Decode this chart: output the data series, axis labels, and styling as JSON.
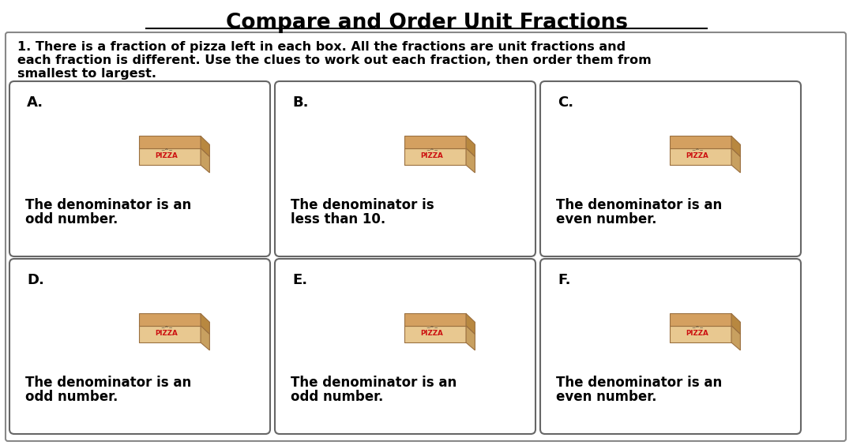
{
  "title": "Compare and Order Unit Fractions",
  "bg_color": "#ffffff",
  "instruction_lines": [
    "1. There is a fraction of pizza left in each box. All the fractions are unit fractions and",
    "each fraction is different. Use the clues to work out each fraction, then order them from",
    "smallest to largest."
  ],
  "cards": [
    {
      "label": "A.",
      "clue_lines": [
        "The denominator is an",
        "odd number."
      ]
    },
    {
      "label": "B.",
      "clue_lines": [
        "The denominator is",
        "less than 10."
      ]
    },
    {
      "label": "C.",
      "clue_lines": [
        "The denominator is an",
        "even number."
      ]
    },
    {
      "label": "D.",
      "clue_lines": [
        "The denominator is an",
        "odd number."
      ]
    },
    {
      "label": "E.",
      "clue_lines": [
        "The denominator is an",
        "odd number."
      ]
    },
    {
      "label": "F.",
      "clue_lines": [
        "The denominator is an",
        "even number."
      ]
    }
  ],
  "title_fontsize": 19,
  "instruction_fontsize": 11.5,
  "label_fontsize": 13,
  "clue_fontsize": 12
}
